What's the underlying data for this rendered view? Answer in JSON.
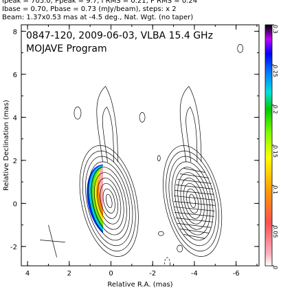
{
  "header": {
    "line1": "Ipeak = 705.0, Ppeak = 9.7, I RMS = 0.21, P RMS = 0.24",
    "line2": "Ibase = 0.70, Pbase = 0.73 (mJy/beam), steps: x 2",
    "line3": "Beam: 1.37x0.53 mas at -4.5 deg., Nat. Wgt. (no taper)"
  },
  "chart_data": {
    "type": "heatmap",
    "title": "0847-120, 2009-06-03, VLBA 15.4 GHz",
    "subtitle": "MOJAVE Program",
    "xlabel": "Relative R.A. (mas)",
    "ylabel": "Relative Declination (mas)",
    "xlim": [
      4.3,
      -7.1
    ],
    "ylim": [
      -2.9,
      8.3
    ],
    "x_ticks": [
      "4",
      "2",
      "0",
      "-2",
      "-4",
      "-6"
    ],
    "x_tick_values": [
      4,
      2,
      0,
      -2,
      -4,
      -6
    ],
    "y_ticks": [
      "-2",
      "0",
      "2",
      "4",
      "6",
      "8"
    ],
    "y_tick_values": [
      -2,
      0,
      2,
      4,
      6,
      8
    ],
    "colorbar": {
      "min": 0,
      "max": 0.3,
      "ticks": [
        "0",
        "0.05",
        "0.1",
        "0.15",
        "0.2",
        "0.25",
        "0.3"
      ],
      "tick_values": [
        0,
        0.05,
        0.1,
        0.15,
        0.2,
        0.25,
        0.3
      ]
    },
    "left_panel_center": [
      0,
      0
    ],
    "right_panel_center": [
      -4,
      0
    ],
    "contour_levels_relative": [
      1,
      2,
      4,
      8,
      16,
      32,
      64,
      128,
      256,
      512
    ]
  }
}
